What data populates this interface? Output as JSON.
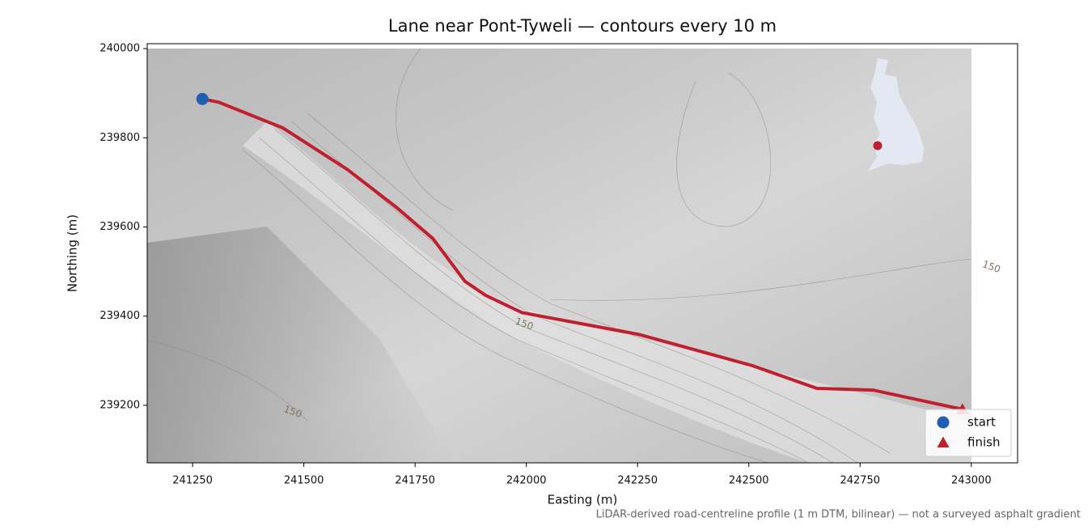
{
  "chart_data": {
    "type": "route",
    "title": "Lane near Pont-Tyweli — contours every 10 m",
    "x_label": "Easting (m)",
    "y_label": "Northing (m)",
    "footnote": "LiDAR-derived road-centreline profile (1 m DTM, bilinear) — not a surveyed asphalt gradient",
    "xlim": [
      241148,
      243104
    ],
    "ylim": [
      239071,
      240011
    ],
    "xticks": [
      241250,
      241500,
      241750,
      242000,
      242250,
      242500,
      242750,
      243000
    ],
    "yticks": [
      239200,
      239400,
      239600,
      239800,
      240000
    ],
    "series": [
      {
        "color": "#c0202e",
        "x": [
          241272,
          241308,
          241453,
          241599,
          241708,
          241790,
          241862,
          241908,
          241990,
          242253,
          242508,
          242653,
          242780,
          242980
        ],
        "values": [
          239887,
          239880,
          239822,
          239728,
          239644,
          239574,
          239478,
          239447,
          239408,
          239359,
          239289,
          239238,
          239234,
          239191
        ]
      }
    ],
    "markers": [
      {
        "name": "start",
        "color": "#1f5fb0",
        "shape": "circle",
        "x": 241272,
        "y": 239887
      },
      {
        "name": "finish",
        "color": "#c0202e",
        "shape": "triangle",
        "x": 242980,
        "y": 239191
      }
    ],
    "contour_labels": [
      {
        "text": "150",
        "x": 241995,
        "y": 239382
      },
      {
        "text": "150",
        "x": 241475,
        "y": 239185
      },
      {
        "text": "150",
        "x": 243045,
        "y": 239510
      }
    ],
    "legend": "lower right"
  }
}
